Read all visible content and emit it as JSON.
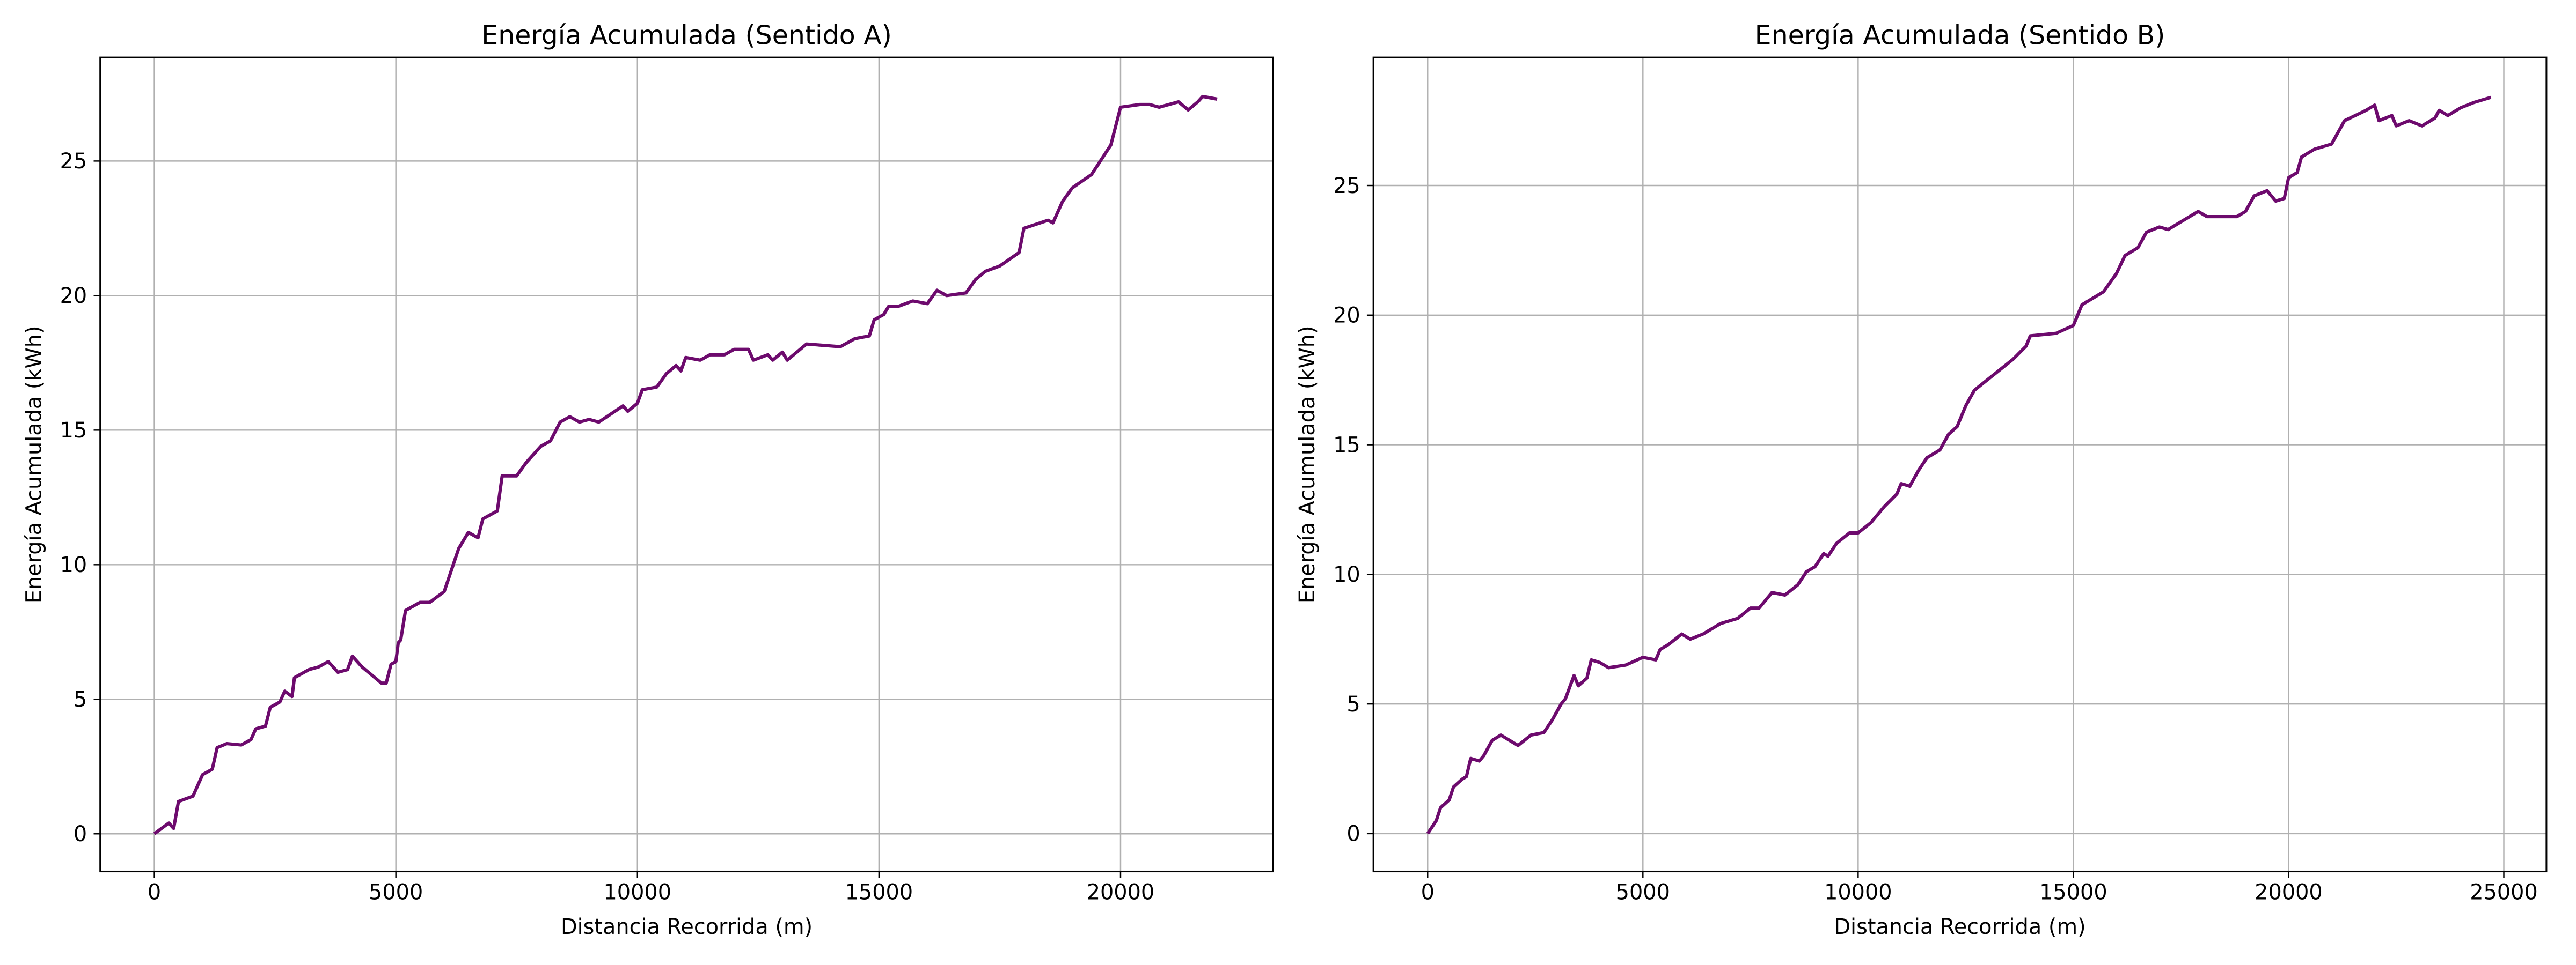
{
  "chart_data": [
    {
      "type": "line",
      "title": "Energía Acumulada (Sentido A)",
      "xlabel": "Distancia Recorrida (m)",
      "ylabel": "Energía Acumulada (kWh)",
      "x": [
        0,
        300,
        400,
        500,
        800,
        1000,
        1200,
        1300,
        1500,
        1800,
        2000,
        2100,
        2300,
        2400,
        2600,
        2700,
        2850,
        2900,
        3200,
        3400,
        3600,
        3800,
        4000,
        4100,
        4300,
        4500,
        4700,
        4800,
        4900,
        5000,
        5050,
        5100,
        5200,
        5500,
        5700,
        6000,
        6300,
        6500,
        6700,
        6800,
        7100,
        7200,
        7500,
        7700,
        8000,
        8200,
        8400,
        8600,
        8800,
        9000,
        9200,
        9700,
        9800,
        10000,
        10100,
        10400,
        10600,
        10800,
        10900,
        11000,
        11300,
        11500,
        11800,
        12000,
        12300,
        12400,
        12700,
        12800,
        13000,
        13100,
        13500,
        14200,
        14500,
        14800,
        14900,
        15100,
        15200,
        15400,
        15700,
        16000,
        16200,
        16400,
        16800,
        17000,
        17200,
        17500,
        17900,
        18000,
        18500,
        18600,
        18800,
        19000,
        19400,
        19800,
        20000,
        20400,
        20600,
        20800,
        21200,
        21400,
        21600,
        21700,
        22000
      ],
      "values": [
        0,
        0.4,
        0.2,
        1.2,
        1.4,
        2.2,
        2.4,
        3.2,
        3.35,
        3.3,
        3.5,
        3.9,
        4.0,
        4.7,
        4.9,
        5.3,
        5.1,
        5.8,
        6.1,
        6.2,
        6.4,
        6.0,
        6.1,
        6.6,
        6.2,
        5.9,
        5.6,
        5.6,
        6.3,
        6.4,
        7.1,
        7.2,
        8.3,
        8.6,
        8.6,
        9.0,
        10.6,
        11.2,
        11.0,
        11.7,
        12.0,
        13.3,
        13.3,
        13.8,
        14.4,
        14.6,
        15.3,
        15.5,
        15.3,
        15.4,
        15.3,
        15.9,
        15.7,
        16.0,
        16.5,
        16.6,
        17.1,
        17.4,
        17.2,
        17.7,
        17.6,
        17.8,
        17.8,
        18.0,
        18.0,
        17.6,
        17.8,
        17.6,
        17.9,
        17.6,
        18.2,
        18.1,
        18.4,
        18.5,
        19.1,
        19.3,
        19.6,
        19.6,
        19.8,
        19.7,
        20.2,
        20.0,
        20.1,
        20.6,
        20.9,
        21.1,
        21.6,
        22.5,
        22.8,
        22.7,
        23.5,
        24.0,
        24.5,
        25.6,
        27.0,
        27.1,
        27.1,
        27.0,
        27.2,
        26.9,
        27.2,
        27.4,
        27.3
      ],
      "color": "#6d0a6d",
      "xlim": [
        -1120,
        23160
      ],
      "ylim": [
        -1.4,
        28.85
      ],
      "xticks": [
        0,
        5000,
        10000,
        15000,
        20000
      ],
      "yticks": [
        0,
        5,
        10,
        15,
        20,
        25
      ],
      "grid": true
    },
    {
      "type": "line",
      "title": "Energía Acumulada (Sentido B)",
      "xlabel": "Distancia Recorrida (m)",
      "ylabel": "Energía Acumulada (kWh)",
      "x": [
        0,
        200,
        300,
        500,
        600,
        800,
        900,
        1000,
        1200,
        1300,
        1500,
        1700,
        1900,
        2100,
        2400,
        2700,
        2900,
        3100,
        3200,
        3400,
        3500,
        3700,
        3800,
        4000,
        4200,
        4600,
        5000,
        5300,
        5400,
        5600,
        5900,
        6100,
        6400,
        6800,
        7200,
        7500,
        7700,
        8000,
        8300,
        8600,
        8800,
        9000,
        9200,
        9300,
        9500,
        9800,
        10000,
        10300,
        10600,
        10900,
        11000,
        11200,
        11400,
        11600,
        11900,
        12100,
        12300,
        12500,
        12700,
        13000,
        13300,
        13600,
        13900,
        14000,
        14600,
        15000,
        15200,
        15700,
        16000,
        16200,
        16500,
        16700,
        17000,
        17200,
        17500,
        17900,
        18100,
        18800,
        19000,
        19200,
        19500,
        19700,
        19900,
        20000,
        20200,
        20300,
        20600,
        21000,
        21300,
        21800,
        22000,
        22100,
        22400,
        22500,
        22800,
        23100,
        23400,
        23500,
        23700,
        24000,
        24300,
        24500,
        24700
      ],
      "values": [
        0,
        0.5,
        1.0,
        1.3,
        1.8,
        2.1,
        2.2,
        2.9,
        2.8,
        3.0,
        3.6,
        3.8,
        3.6,
        3.4,
        3.8,
        3.9,
        4.4,
        5.0,
        5.2,
        6.1,
        5.7,
        6.0,
        6.7,
        6.6,
        6.4,
        6.5,
        6.8,
        6.7,
        7.1,
        7.3,
        7.7,
        7.5,
        7.7,
        8.1,
        8.3,
        8.7,
        8.7,
        9.3,
        9.2,
        9.6,
        10.1,
        10.3,
        10.8,
        10.7,
        11.2,
        11.6,
        11.6,
        12.0,
        12.6,
        13.1,
        13.5,
        13.4,
        14.0,
        14.5,
        14.8,
        15.4,
        15.7,
        16.5,
        17.1,
        17.5,
        17.9,
        18.3,
        18.8,
        19.2,
        19.3,
        19.6,
        20.4,
        20.9,
        21.6,
        22.3,
        22.6,
        23.2,
        23.4,
        23.3,
        23.6,
        24.0,
        23.8,
        23.8,
        24.0,
        24.6,
        24.8,
        24.4,
        24.5,
        25.3,
        25.5,
        26.1,
        26.4,
        26.6,
        27.5,
        27.9,
        28.1,
        27.5,
        27.7,
        27.3,
        27.5,
        27.3,
        27.6,
        27.9,
        27.7,
        28.0,
        28.2,
        28.3,
        28.4
      ],
      "color": "#6d0a6d",
      "xlim": [
        -1260,
        25990
      ],
      "ylim": [
        -1.46,
        29.94
      ],
      "xticks": [
        0,
        5000,
        10000,
        15000,
        20000,
        25000
      ],
      "yticks": [
        0,
        5,
        10,
        15,
        20,
        25
      ],
      "grid": true
    }
  ]
}
